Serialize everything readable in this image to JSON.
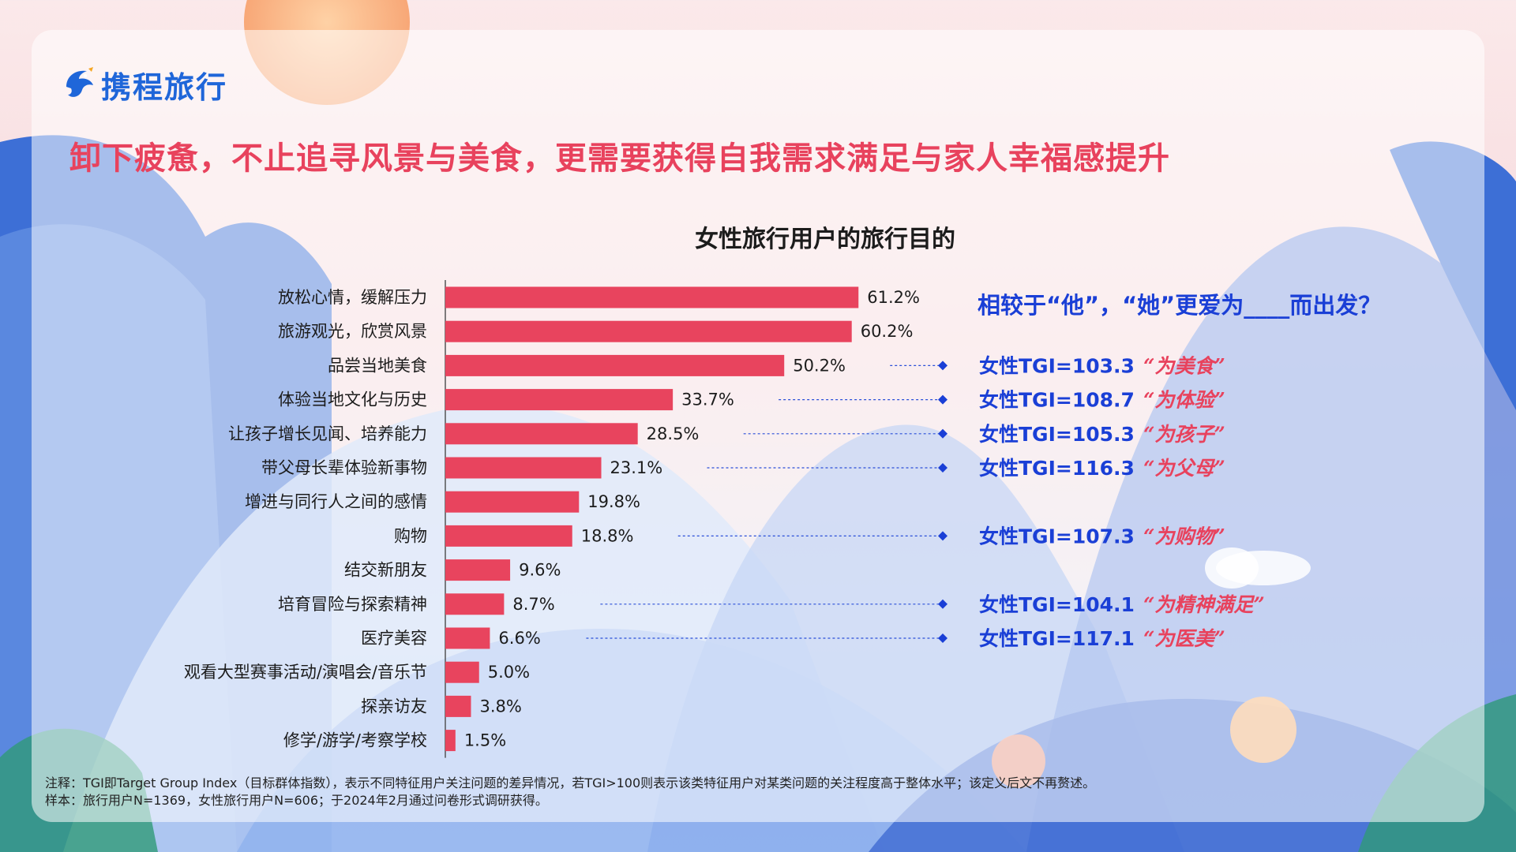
{
  "brand": {
    "name": "携程旅行"
  },
  "headline": "卸下疲惫，不止追寻风景与美食，更需要获得自我需求满足与家人幸福感提升",
  "colors": {
    "bar": "#e8445e",
    "headline": "#e8425d",
    "tgi": "#1a3fd6",
    "brand": "#1f66d9"
  },
  "callout": {
    "question": "相较于“他”，“她”更爱为____而出发？"
  },
  "chart_data": {
    "type": "bar",
    "orientation": "horizontal",
    "title": "女性旅行用户的旅行目的",
    "categories": [
      "放松心情，缓解压力",
      "旅游观光，欣赏风景",
      "品尝当地美食",
      "体验当地文化与历史",
      "让孩子增长见闻、培养能力",
      "带父母长辈体验新事物",
      "增进与同行人之间的感情",
      "购物",
      "结交新朋友",
      "培育冒险与探索精神",
      "医疗美容",
      "观看大型赛事活动/演唱会/音乐节",
      "探亲访友",
      "修学/游学/考察学校"
    ],
    "values": [
      61.2,
      60.2,
      50.2,
      33.7,
      28.5,
      23.1,
      19.8,
      18.8,
      9.6,
      8.7,
      6.6,
      5.0,
      3.8,
      1.5
    ],
    "value_labels": [
      "61.2%",
      "60.2%",
      "50.2%",
      "33.7%",
      "28.5%",
      "23.1%",
      "19.8%",
      "18.8%",
      "9.6%",
      "8.7%",
      "6.6%",
      "5.0%",
      "3.8%",
      "1.5%"
    ],
    "unit": "%",
    "xlim": [
      0,
      70
    ],
    "annotations": [
      {
        "category_index": 2,
        "label": "女性TGI=103.3",
        "note": "“为美食”"
      },
      {
        "category_index": 3,
        "label": "女性TGI=108.7",
        "note": "“为体验”"
      },
      {
        "category_index": 4,
        "label": "女性TGI=105.3",
        "note": "“为孩子”"
      },
      {
        "category_index": 5,
        "label": "女性TGI=116.3",
        "note": "“为父母”"
      },
      {
        "category_index": 7,
        "label": "女性TGI=107.3",
        "note": "“为购物”"
      },
      {
        "category_index": 9,
        "label": "女性TGI=104.1",
        "note": "“为精神满足”"
      },
      {
        "category_index": 10,
        "label": "女性TGI=117.1",
        "note": "“为医美”"
      }
    ]
  },
  "footnote": {
    "note": "注释：TGI即Target Group Index（目标群体指数），表示不同特征用户关注问题的差异情况，若TGI>100则表示该类特征用户对某类问题的关注程度高于整体水平；该定义后文不再赘述。",
    "sample": "样本：旅行用户N=1369，女性旅行用户N=606；于2024年2月通过问卷形式调研获得。"
  }
}
